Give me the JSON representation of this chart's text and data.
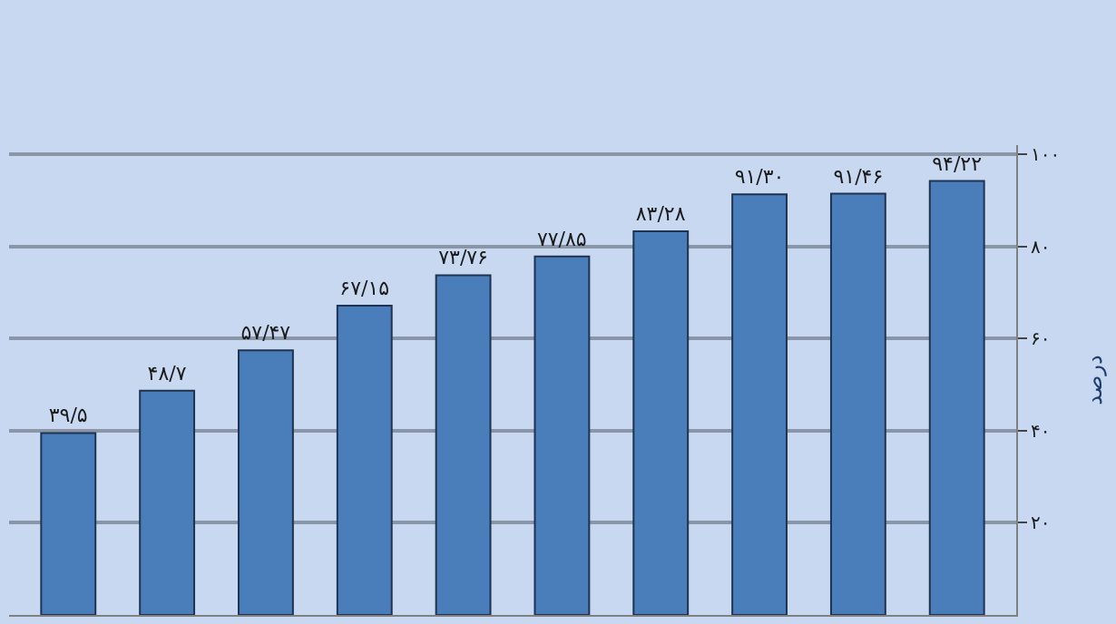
{
  "chart_data": {
    "type": "bar",
    "ylabel": "درصد",
    "categories": [
      null,
      null,
      null,
      null,
      null,
      null,
      null,
      null,
      null,
      null
    ],
    "values": [
      39.5,
      48.7,
      57.47,
      67.15,
      73.76,
      77.85,
      83.28,
      91.3,
      91.46,
      94.22
    ],
    "value_labels": [
      "۳۹/۵",
      "۴۸/۷",
      "۵۷/۴۷",
      "۶۷/۱۵",
      "۷۳/۷۶",
      "۷۷/۸۵",
      "۸۳/۲۸",
      "۹۱/۳۰",
      "۹۱/۴۶",
      "۹۴/۲۲"
    ],
    "color": "#4a7ebb",
    "ylim": [
      0,
      102
    ],
    "yticks": [
      {
        "value": 20,
        "label": "۲۰"
      },
      {
        "value": 40,
        "label": "۴۰"
      },
      {
        "value": 60,
        "label": "۶۰"
      },
      {
        "value": 80,
        "label": "۸۰"
      },
      {
        "value": 100,
        "label": "۱۰۰"
      }
    ],
    "grid": "y",
    "tick_labels": "y"
  }
}
